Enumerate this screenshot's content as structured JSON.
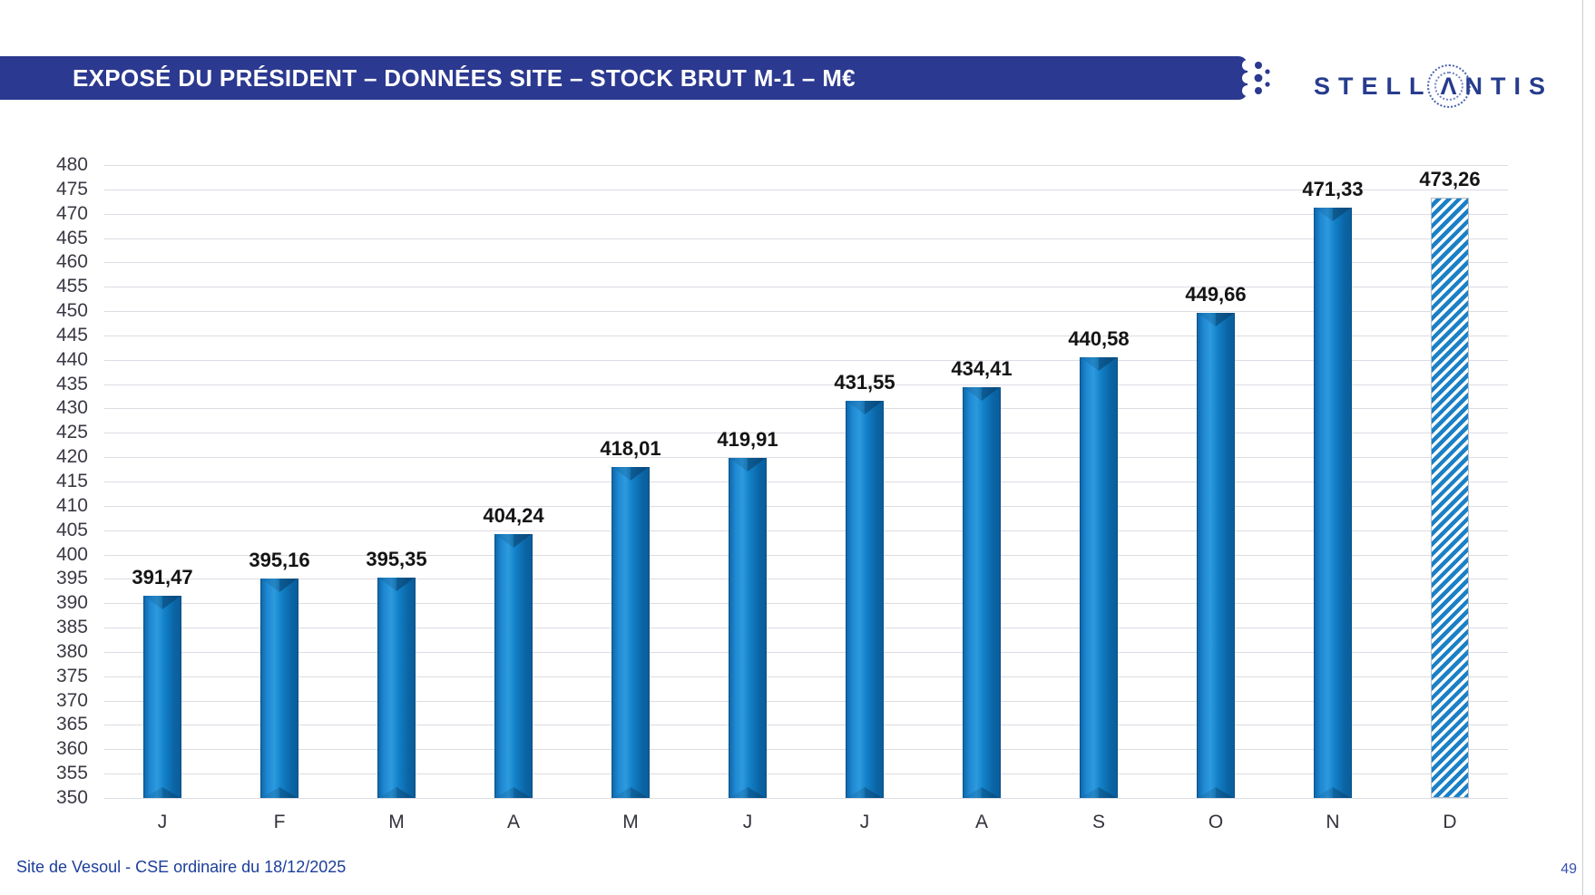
{
  "header": {
    "title": "EXPOSÉ DU PRÉSIDENT – DONNÉES SITE – STOCK BRUT M-1 – M€",
    "bar_color": "#2b3990"
  },
  "logo": {
    "name": "STELLANTIS",
    "part1": "STELL",
    "chevron": "Λ",
    "part2": "NTIS",
    "color": "#263c8d"
  },
  "footer": {
    "left": "Site de Vesoul - CSE ordinaire du 18/12/2025",
    "page": "49"
  },
  "chart_data": {
    "type": "bar",
    "title": "",
    "xlabel": "",
    "ylabel": "",
    "categories": [
      "J",
      "F",
      "M",
      "A",
      "M",
      "J",
      "J",
      "A",
      "S",
      "O",
      "N",
      "D"
    ],
    "values": [
      391.47,
      395.16,
      395.35,
      404.24,
      418.01,
      419.91,
      431.55,
      434.41,
      440.58,
      449.66,
      471.33,
      473.26
    ],
    "value_labels": [
      "391,47",
      "395,16",
      "395,35",
      "404,24",
      "418,01",
      "419,91",
      "431,55",
      "434,41",
      "440,58",
      "449,66",
      "471,33",
      "473,26"
    ],
    "ylim": [
      350,
      480
    ],
    "ytick_step": 5,
    "yticks": [
      480,
      475,
      470,
      465,
      460,
      455,
      450,
      445,
      440,
      435,
      430,
      425,
      420,
      415,
      410,
      405,
      400,
      395,
      390,
      385,
      380,
      375,
      370,
      365,
      360,
      355,
      350
    ],
    "grid": true,
    "legend": "none",
    "bar_color": "#1580c8",
    "hatch_color": "#1b80c6",
    "last_bar_style": "hatched-forecast"
  }
}
